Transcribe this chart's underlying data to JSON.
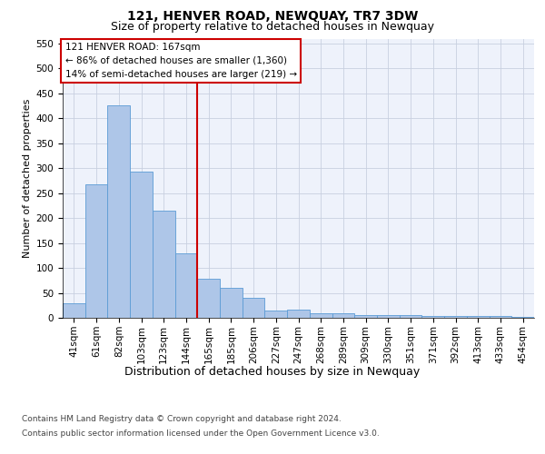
{
  "title": "121, HENVER ROAD, NEWQUAY, TR7 3DW",
  "subtitle": "Size of property relative to detached houses in Newquay",
  "xlabel": "Distribution of detached houses by size in Newquay",
  "ylabel": "Number of detached properties",
  "categories": [
    "41sqm",
    "61sqm",
    "82sqm",
    "103sqm",
    "123sqm",
    "144sqm",
    "165sqm",
    "185sqm",
    "206sqm",
    "227sqm",
    "247sqm",
    "268sqm",
    "289sqm",
    "309sqm",
    "330sqm",
    "351sqm",
    "371sqm",
    "392sqm",
    "413sqm",
    "433sqm",
    "454sqm"
  ],
  "values": [
    30,
    268,
    427,
    293,
    215,
    130,
    78,
    60,
    40,
    14,
    17,
    10,
    10,
    5,
    5,
    5,
    4,
    3,
    3,
    3,
    2
  ],
  "bar_color": "#aec6e8",
  "bar_edge_color": "#5b9bd5",
  "vline_index": 6,
  "vline_color": "#cc0000",
  "ylim": [
    0,
    560
  ],
  "yticks": [
    0,
    50,
    100,
    150,
    200,
    250,
    300,
    350,
    400,
    450,
    500,
    550
  ],
  "annotation_text": "121 HENVER ROAD: 167sqm\n← 86% of detached houses are smaller (1,360)\n14% of semi-detached houses are larger (219) →",
  "annotation_box_color": "#ffffff",
  "annotation_box_edge": "#cc0000",
  "footer_line1": "Contains HM Land Registry data © Crown copyright and database right 2024.",
  "footer_line2": "Contains public sector information licensed under the Open Government Licence v3.0.",
  "bg_color": "#eef2fb",
  "title_fontsize": 10,
  "subtitle_fontsize": 9,
  "xlabel_fontsize": 9,
  "ylabel_fontsize": 8,
  "tick_fontsize": 7.5,
  "annotation_fontsize": 7.5,
  "footer_fontsize": 6.5
}
